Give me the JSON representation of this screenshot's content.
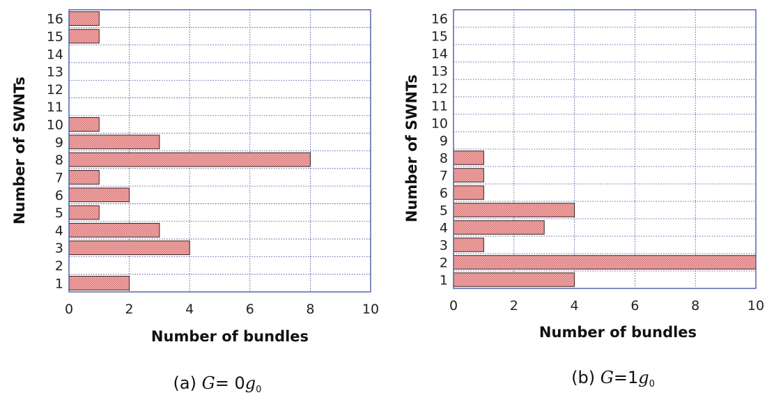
{
  "chart_data": [
    {
      "type": "bar",
      "orientation": "horizontal",
      "caption": {
        "prefix": "(a) ",
        "var": "G",
        "eq": "= 0",
        "coef": "g",
        "sub": "0"
      },
      "xlabel": "Number of bundles",
      "ylabel": "Number of SWNTs",
      "xlim": [
        0,
        10
      ],
      "xticks": [
        0,
        2,
        4,
        6,
        8,
        10
      ],
      "ylim": [
        1,
        16
      ],
      "grid": true,
      "bar_color": "#f4a0a0",
      "bar_hatch_color": "#c06060",
      "categories": [
        "1",
        "2",
        "3",
        "4",
        "5",
        "6",
        "7",
        "8",
        "9",
        "10",
        "11",
        "12",
        "13",
        "14",
        "15",
        "16"
      ],
      "values": [
        2,
        0,
        4,
        3,
        1,
        2,
        1,
        8,
        3,
        1,
        0,
        0,
        0,
        0,
        1,
        1
      ]
    },
    {
      "type": "bar",
      "orientation": "horizontal",
      "caption": {
        "prefix": "(b)  ",
        "var": "G",
        "eq": "=1",
        "coef": "g",
        "sub": "0"
      },
      "xlabel": "Number of bundles",
      "ylabel": "Number of SWNTs",
      "xlim": [
        0,
        10
      ],
      "xticks": [
        0,
        2,
        4,
        6,
        8,
        10
      ],
      "ylim": [
        1,
        16
      ],
      "grid": true,
      "bar_color": "#f4a0a0",
      "bar_hatch_color": "#c06060",
      "categories": [
        "1",
        "2",
        "3",
        "4",
        "5",
        "6",
        "7",
        "8",
        "9",
        "10",
        "11",
        "12",
        "13",
        "14",
        "15",
        "16"
      ],
      "values": [
        4,
        10,
        1,
        3,
        4,
        1,
        1,
        1,
        0,
        0,
        0,
        0,
        0,
        0,
        0,
        0
      ]
    }
  ]
}
